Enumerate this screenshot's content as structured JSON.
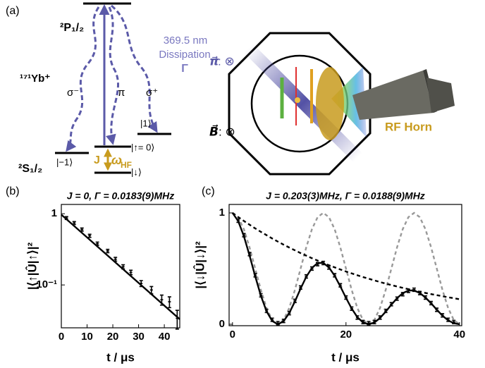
{
  "panel_a": {
    "panel_label": "(a)",
    "upper_level": "²P₁/₂",
    "ion": "¹⁷¹Yb⁺",
    "lower_level": "²S₁/₂",
    "sigma_minus": "σ⁻",
    "pi": "π",
    "sigma_plus": "σ⁺",
    "wavelength": "369.5 nm",
    "dissipation": "Dissipation",
    "gamma": "Γ",
    "state_plus": "|1⟩",
    "state_minus": "|−1⟩",
    "state_up": "|↑= 0⟩",
    "state_down": "|↓⟩",
    "coupling": "J",
    "omega": "ω",
    "omega_sub": "HF",
    "pi_vec": "π⃗",
    "pi_vec_dir": ": ⊗",
    "b_vec": "B⃗",
    "b_vec_dir": ": ⊗",
    "horn": "RF Horn"
  },
  "chart_data": [
    {
      "type": "scatter",
      "panel_label": "(b)",
      "title": "J = 0,  Γ = 0.0183(9)MHz",
      "x_label": "t / μs",
      "y_label": "|⟨↑|Û|↑⟩|²",
      "log_y": true,
      "xlim": [
        0,
        46
      ],
      "ylim": [
        0.025,
        1.35
      ],
      "xticks": [
        0,
        10,
        20,
        30,
        40
      ],
      "yticks": [
        {
          "value": 0.1,
          "label": "10⁻¹"
        },
        1
      ],
      "series": [
        {
          "style": "points",
          "color": "#000000",
          "x": [
            2,
            5,
            8,
            11,
            14,
            18,
            21,
            24,
            27,
            31,
            35,
            39,
            42,
            45
          ],
          "values": [
            0.87,
            0.74,
            0.6,
            0.49,
            0.38,
            0.3,
            0.23,
            0.18,
            0.15,
            0.105,
            0.085,
            0.062,
            0.058,
            0.034
          ],
          "errors": [
            0.04,
            0.035,
            0.03,
            0.025,
            0.02,
            0.016,
            0.014,
            0.012,
            0.011,
            0.01,
            0.01,
            0.01,
            0.01,
            0.01
          ]
        },
        {
          "style": "solid",
          "color": "#000000",
          "x": [
            0,
            46
          ],
          "values": [
            0.97,
            0.033
          ]
        }
      ]
    },
    {
      "type": "scatter",
      "panel_label": "(c)",
      "title": "J = 0.203(3)MHz,  Γ = 0.0188(9)MHz",
      "x_label": "t / μs",
      "y_label": "|⟨↓|Û|↓⟩|²",
      "log_y": false,
      "xlim": [
        -0.6,
        40.4
      ],
      "ylim": [
        -0.013,
        1.076
      ],
      "xticks": [
        0,
        20,
        40
      ],
      "yticks": [
        0,
        1
      ],
      "series": [
        {
          "style": "dashed",
          "color": "#999999",
          "x": [
            0,
            1,
            2,
            3,
            4,
            5,
            6,
            7,
            8,
            9,
            10,
            11,
            12,
            13,
            14,
            15,
            16,
            17,
            18,
            19,
            20,
            21,
            22,
            23,
            24,
            25,
            26,
            27,
            28,
            29,
            30,
            31,
            32,
            33,
            34,
            35,
            36,
            37,
            38,
            39,
            40
          ],
          "values": [
            1,
            0.962,
            0.854,
            0.691,
            0.5,
            0.309,
            0.146,
            0.038,
            0,
            0.038,
            0.146,
            0.309,
            0.5,
            0.691,
            0.854,
            0.962,
            1,
            0.962,
            0.854,
            0.691,
            0.5,
            0.309,
            0.146,
            0.038,
            0,
            0.038,
            0.146,
            0.309,
            0.5,
            0.691,
            0.854,
            0.962,
            1,
            0.962,
            0.854,
            0.691,
            0.5,
            0.309,
            0.146,
            0.038,
            0
          ]
        },
        {
          "style": "solid",
          "color": "#000000",
          "x": [
            0,
            1,
            2,
            3,
            4,
            5,
            6,
            7,
            8,
            9,
            10,
            11,
            12,
            13,
            14,
            15,
            16,
            17,
            18,
            19,
            20,
            21,
            22,
            23,
            24,
            25,
            26,
            27,
            28,
            29,
            30,
            31,
            32,
            33,
            34,
            35,
            36,
            37,
            38,
            39,
            40
          ],
          "values": [
            1,
            0.927,
            0.792,
            0.618,
            0.431,
            0.256,
            0.117,
            0.029,
            0,
            0.027,
            0.101,
            0.205,
            0.32,
            0.426,
            0.506,
            0.55,
            0.551,
            0.51,
            0.436,
            0.34,
            0.237,
            0.141,
            0.064,
            0.016,
            0,
            0.015,
            0.056,
            0.113,
            0.176,
            0.234,
            0.279,
            0.303,
            0.303,
            0.281,
            0.24,
            0.188,
            0.131,
            0.077,
            0.035,
            0.009,
            0
          ]
        },
        {
          "style": "dashed",
          "color": "#000000",
          "x": [
            0,
            1,
            2,
            3,
            4,
            5,
            6,
            7,
            8,
            9,
            10,
            11,
            12,
            13,
            14,
            15,
            16,
            17,
            18,
            19,
            20,
            21,
            22,
            23,
            24,
            25,
            26,
            27,
            28,
            29,
            30,
            31,
            32,
            33,
            34,
            35,
            36,
            37,
            38,
            39,
            40
          ],
          "values": [
            1,
            0.963,
            0.928,
            0.894,
            0.861,
            0.83,
            0.8,
            0.77,
            0.742,
            0.715,
            0.689,
            0.664,
            0.639,
            0.616,
            0.593,
            0.572,
            0.551,
            0.53,
            0.511,
            0.492,
            0.474,
            0.457,
            0.44,
            0.424,
            0.409,
            0.394,
            0.379,
            0.365,
            0.352,
            0.339,
            0.327,
            0.315,
            0.303,
            0.292,
            0.281,
            0.271,
            0.261,
            0.252,
            0.242,
            0.234,
            0.225
          ]
        },
        {
          "style": "points",
          "color": "#000000",
          "x": [
            1,
            2,
            3,
            4,
            5,
            6,
            7,
            8,
            9,
            10,
            11,
            12,
            13,
            14,
            15,
            16,
            17,
            18,
            19,
            20,
            21,
            22,
            23,
            24,
            25,
            26,
            27,
            28,
            29,
            30,
            31,
            32,
            33,
            34,
            35,
            36,
            37,
            38,
            39
          ],
          "values": [
            0.93,
            0.8,
            0.63,
            0.44,
            0.26,
            0.12,
            0.04,
            0.01,
            0.03,
            0.1,
            0.21,
            0.33,
            0.43,
            0.5,
            0.54,
            0.55,
            0.51,
            0.44,
            0.35,
            0.24,
            0.14,
            0.06,
            0.02,
            0.01,
            0.02,
            0.06,
            0.12,
            0.18,
            0.23,
            0.27,
            0.3,
            0.31,
            0.28,
            0.24,
            0.19,
            0.13,
            0.08,
            0.04,
            0.02
          ],
          "error": 0.015
        }
      ]
    }
  ]
}
